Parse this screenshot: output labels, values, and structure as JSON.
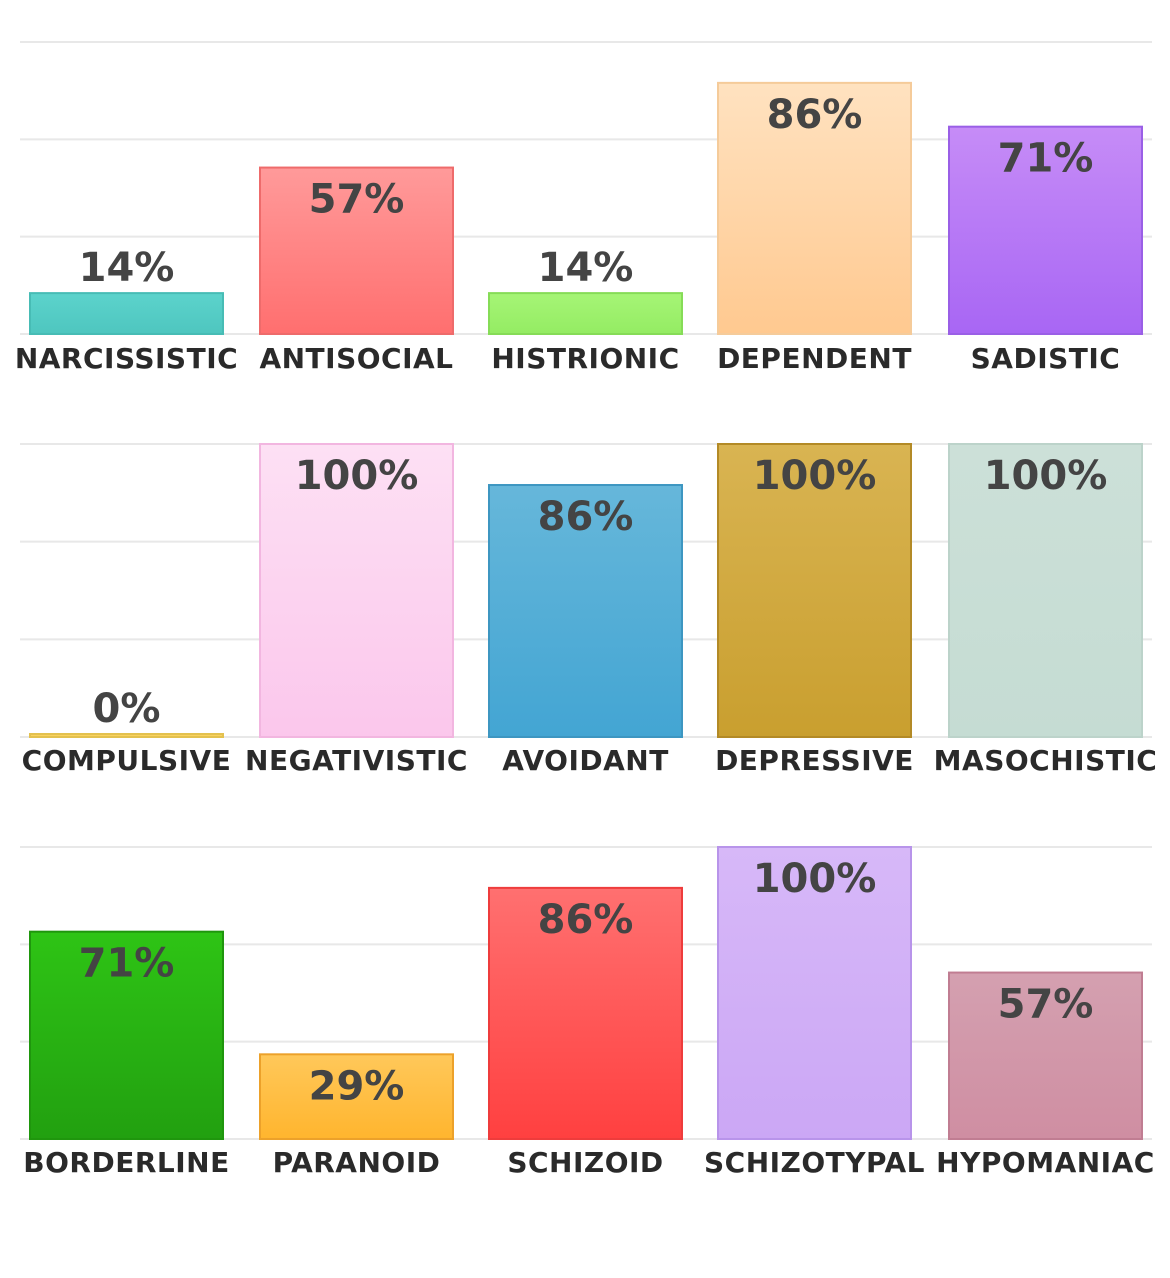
{
  "chart_data": [
    {
      "type": "bar",
      "categories": [
        "NARCISSISTIC",
        "ANTISOCIAL",
        "HISTRIONIC",
        "DEPENDENT",
        "SADISTIC"
      ],
      "values": [
        14,
        57,
        14,
        86,
        71
      ],
      "value_labels": [
        "14%",
        "57%",
        "14%",
        "86%",
        "71%"
      ],
      "colors": [
        [
          "#5cd3cc",
          "#4ec6bf"
        ],
        [
          "#ff9a9a",
          "#ff6f6f"
        ],
        [
          "#a6f576",
          "#94ec63"
        ],
        [
          "#ffe2c0",
          "#ffc990"
        ],
        [
          "#c68cf7",
          "#a866f4"
        ]
      ],
      "borders": [
        "#47bcb5",
        "#ee6b6b",
        "#86dc57",
        "#f5cb9a",
        "#9a5fe6"
      ],
      "ylim": [
        0,
        100
      ],
      "grid": true
    },
    {
      "type": "bar",
      "categories": [
        "COMPULSIVE",
        "NEGATIVISTIC",
        "AVOIDANT",
        "DEPRESSIVE",
        "MASOCHISTIC"
      ],
      "values": [
        0,
        100,
        86,
        100,
        100
      ],
      "value_labels": [
        "0%",
        "100%",
        "86%",
        "100%",
        "100%"
      ],
      "colors": [
        [
          "#ffd966",
          "#f5cc55"
        ],
        [
          "#fde0f4",
          "#fbc7ec"
        ],
        [
          "#66b7da",
          "#43a5d3"
        ],
        [
          "#d9b452",
          "#c99f2f"
        ],
        [
          "#cce0d8",
          "#c5dcd3"
        ]
      ],
      "borders": [
        "#e3c14f",
        "#f2b6e0",
        "#3d96c1",
        "#b38a26",
        "#bcd3ca"
      ],
      "ylim": [
        0,
        100
      ],
      "grid": true
    },
    {
      "type": "bar",
      "categories": [
        "BORDERLINE",
        "PARANOID",
        "SCHIZOID",
        "SCHIZOTYPAL",
        "HYPOMANIAC"
      ],
      "values": [
        71,
        29,
        86,
        100,
        57
      ],
      "value_labels": [
        "71%",
        "29%",
        "86%",
        "100%",
        "57%"
      ],
      "colors": [
        [
          "#2ec415",
          "#22a010"
        ],
        [
          "#ffc85a",
          "#ffb52e"
        ],
        [
          "#ff7070",
          "#ff4040"
        ],
        [
          "#d7b8f8",
          "#cba7f5"
        ],
        [
          "#d4a0b0",
          "#cf8ea2"
        ]
      ],
      "borders": [
        "#1f960d",
        "#eca12a",
        "#ee3c3c",
        "#b894ea",
        "#c07d92"
      ],
      "ylim": [
        0,
        100
      ],
      "grid": true
    }
  ]
}
